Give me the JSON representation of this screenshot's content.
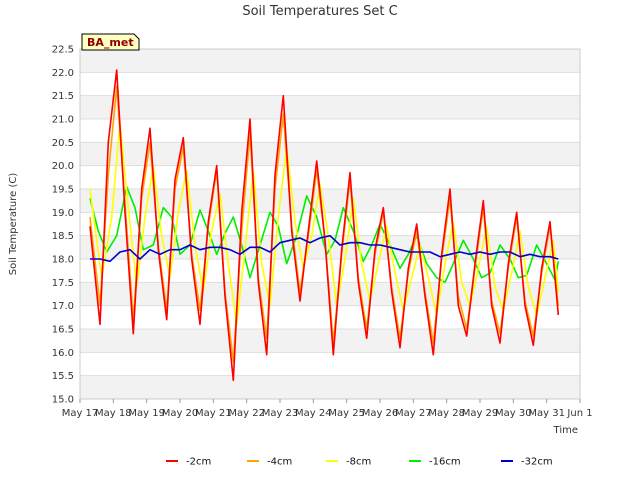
{
  "chart_data": {
    "type": "line",
    "title": "Soil Temperatures Set C",
    "xlabel": "Time",
    "ylabel": "Soil Temperature (C)",
    "site_label": "BA_met",
    "xlim": [
      17,
      32
    ],
    "ylim": [
      15.0,
      22.5
    ],
    "x_ticks": [
      {
        "x": 17,
        "label": "May 17"
      },
      {
        "x": 18,
        "label": "May 18"
      },
      {
        "x": 19,
        "label": "May 19"
      },
      {
        "x": 20,
        "label": "May 20"
      },
      {
        "x": 21,
        "label": "May 21"
      },
      {
        "x": 22,
        "label": "May 22"
      },
      {
        "x": 23,
        "label": "May 23"
      },
      {
        "x": 24,
        "label": "May 24"
      },
      {
        "x": 25,
        "label": "May 25"
      },
      {
        "x": 26,
        "label": "May 26"
      },
      {
        "x": 27,
        "label": "May 27"
      },
      {
        "x": 28,
        "label": "May 28"
      },
      {
        "x": 29,
        "label": "May 29"
      },
      {
        "x": 30,
        "label": "May 30"
      },
      {
        "x": 31,
        "label": "May 31"
      },
      {
        "x": 32,
        "label": "Jun 1"
      }
    ],
    "y_ticks": [
      "15.0",
      "15.5",
      "16.0",
      "16.5",
      "17.0",
      "17.5",
      "18.0",
      "18.5",
      "19.0",
      "19.5",
      "20.0",
      "20.5",
      "21.0",
      "21.5",
      "22.0",
      "22.5"
    ],
    "grid": true,
    "legend_position": "bottom",
    "series": [
      {
        "name": "-2cm",
        "color": "#ff0000",
        "x": [
          17.3,
          17.6,
          17.85,
          18.1,
          18.35,
          18.6,
          18.85,
          19.1,
          19.35,
          19.6,
          19.85,
          20.1,
          20.35,
          20.6,
          20.85,
          21.1,
          21.35,
          21.6,
          21.85,
          22.1,
          22.35,
          22.6,
          22.85,
          23.1,
          23.35,
          23.6,
          23.85,
          24.1,
          24.35,
          24.6,
          24.85,
          25.1,
          25.35,
          25.6,
          25.85,
          26.1,
          26.35,
          26.6,
          26.85,
          27.1,
          27.35,
          27.6,
          27.85,
          28.1,
          28.35,
          28.6,
          28.85,
          29.1,
          29.35,
          29.6,
          29.85,
          30.1,
          30.35,
          30.6,
          30.85,
          31.1,
          31.35
        ],
        "y": [
          18.7,
          16.6,
          20.5,
          22.05,
          19.0,
          16.4,
          19.5,
          20.8,
          18.2,
          16.7,
          19.7,
          20.6,
          18.0,
          16.6,
          18.8,
          20.0,
          17.2,
          15.4,
          19.0,
          21.0,
          17.5,
          15.95,
          19.8,
          21.5,
          18.6,
          17.1,
          18.6,
          20.1,
          18.4,
          15.95,
          18.2,
          19.85,
          17.5,
          16.3,
          18.2,
          19.1,
          17.3,
          16.1,
          17.8,
          18.75,
          17.2,
          15.95,
          18.1,
          19.5,
          17.0,
          16.35,
          17.9,
          19.25,
          17.0,
          16.2,
          17.9,
          19.0,
          17.0,
          16.15,
          17.8,
          18.8,
          16.8
        ]
      },
      {
        "name": "-4cm",
        "color": "#ffa500",
        "x": [
          17.3,
          17.6,
          17.85,
          18.1,
          18.35,
          18.6,
          18.85,
          19.1,
          19.35,
          19.6,
          19.85,
          20.1,
          20.35,
          20.6,
          20.85,
          21.1,
          21.35,
          21.6,
          21.85,
          22.1,
          22.35,
          22.6,
          22.85,
          23.1,
          23.35,
          23.6,
          23.85,
          24.1,
          24.35,
          24.6,
          24.85,
          25.1,
          25.35,
          25.6,
          25.85,
          26.1,
          26.35,
          26.6,
          26.85,
          27.1,
          27.35,
          27.6,
          27.85,
          28.1,
          28.35,
          28.6,
          28.85,
          29.1,
          29.35,
          29.6,
          29.85,
          30.1,
          30.35,
          30.6,
          30.85,
          31.1,
          31.35
        ],
        "y": [
          18.9,
          17.0,
          19.8,
          21.7,
          19.2,
          16.7,
          19.3,
          20.5,
          18.3,
          16.9,
          19.5,
          20.4,
          18.1,
          16.9,
          18.7,
          19.9,
          17.3,
          15.8,
          18.6,
          20.7,
          17.6,
          16.3,
          19.5,
          21.1,
          18.7,
          17.3,
          18.5,
          19.9,
          18.4,
          16.2,
          18.1,
          19.7,
          17.6,
          16.5,
          18.1,
          19.0,
          17.4,
          16.3,
          17.7,
          18.6,
          17.3,
          16.2,
          18.0,
          19.3,
          17.2,
          16.5,
          17.8,
          19.1,
          17.1,
          16.4,
          17.8,
          18.9,
          17.1,
          16.35,
          17.7,
          18.7,
          17.0
        ]
      },
      {
        "name": "-8cm",
        "color": "#ffff00",
        "x": [
          17.3,
          17.65,
          17.95,
          18.2,
          18.45,
          18.7,
          18.95,
          19.2,
          19.45,
          19.7,
          19.95,
          20.2,
          20.45,
          20.7,
          20.95,
          21.2,
          21.45,
          21.7,
          21.95,
          22.2,
          22.45,
          22.7,
          22.95,
          23.2,
          23.45,
          23.7,
          23.95,
          24.2,
          24.45,
          24.7,
          24.95,
          25.2,
          25.45,
          25.7,
          25.95,
          26.2,
          26.45,
          26.7,
          26.95,
          27.2,
          27.45,
          27.7,
          27.95,
          28.2,
          28.45,
          28.7,
          28.95,
          29.2,
          29.45,
          29.7,
          29.95,
          30.2,
          30.45,
          30.7,
          30.95,
          31.2,
          31.35
        ],
        "y": [
          19.5,
          17.6,
          18.9,
          20.9,
          19.1,
          17.4,
          18.9,
          20.0,
          18.5,
          17.6,
          19.0,
          19.9,
          18.3,
          17.3,
          18.6,
          19.4,
          17.9,
          16.6,
          18.2,
          19.9,
          17.9,
          17.0,
          18.9,
          20.4,
          18.8,
          17.8,
          18.5,
          19.6,
          18.5,
          17.0,
          18.0,
          19.3,
          17.9,
          17.1,
          17.9,
          18.7,
          17.7,
          16.9,
          17.6,
          18.3,
          17.6,
          16.8,
          17.9,
          18.8,
          17.5,
          17.0,
          17.8,
          18.7,
          17.4,
          16.9,
          17.7,
          18.6,
          17.4,
          16.8,
          17.6,
          18.4,
          17.3
        ]
      },
      {
        "name": "-16cm",
        "color": "#00ee00",
        "x": [
          17.3,
          17.55,
          17.8,
          18.1,
          18.4,
          18.65,
          18.9,
          19.2,
          19.5,
          19.75,
          20.0,
          20.3,
          20.6,
          20.85,
          21.1,
          21.35,
          21.6,
          21.85,
          22.1,
          22.4,
          22.7,
          22.95,
          23.2,
          23.5,
          23.8,
          24.1,
          24.4,
          24.65,
          24.9,
          25.2,
          25.5,
          25.75,
          26.0,
          26.3,
          26.6,
          26.85,
          27.1,
          27.4,
          27.7,
          27.95,
          28.2,
          28.5,
          28.8,
          29.05,
          29.3,
          29.6,
          29.9,
          30.15,
          30.4,
          30.7,
          31.0,
          31.25,
          31.35
        ],
        "y": [
          19.3,
          18.6,
          18.15,
          18.5,
          19.55,
          19.1,
          18.2,
          18.3,
          19.1,
          18.9,
          18.1,
          18.3,
          19.05,
          18.6,
          18.1,
          18.55,
          18.9,
          18.3,
          17.6,
          18.3,
          19.0,
          18.7,
          17.9,
          18.5,
          19.35,
          18.9,
          18.1,
          18.4,
          19.1,
          18.6,
          17.95,
          18.3,
          18.75,
          18.3,
          17.8,
          18.1,
          18.5,
          17.9,
          17.6,
          17.5,
          17.9,
          18.4,
          18.0,
          17.6,
          17.7,
          18.3,
          18.0,
          17.6,
          17.65,
          18.3,
          17.9,
          17.55,
          17.95
        ]
      },
      {
        "name": "-32cm",
        "color": "#0000cc",
        "x": [
          17.3,
          17.6,
          17.9,
          18.2,
          18.5,
          18.8,
          19.1,
          19.4,
          19.7,
          20.0,
          20.3,
          20.6,
          20.9,
          21.2,
          21.5,
          21.8,
          22.1,
          22.4,
          22.7,
          23.0,
          23.3,
          23.6,
          23.9,
          24.2,
          24.5,
          24.8,
          25.1,
          25.4,
          25.7,
          26.0,
          26.3,
          26.6,
          26.9,
          27.2,
          27.5,
          27.8,
          28.1,
          28.4,
          28.7,
          29.0,
          29.3,
          29.6,
          29.9,
          30.2,
          30.5,
          30.8,
          31.1,
          31.35
        ],
        "y": [
          18.0,
          18.0,
          17.95,
          18.15,
          18.2,
          18.0,
          18.2,
          18.1,
          18.2,
          18.2,
          18.3,
          18.2,
          18.25,
          18.25,
          18.2,
          18.1,
          18.25,
          18.25,
          18.15,
          18.35,
          18.4,
          18.45,
          18.35,
          18.45,
          18.5,
          18.3,
          18.35,
          18.35,
          18.3,
          18.3,
          18.25,
          18.2,
          18.15,
          18.15,
          18.15,
          18.05,
          18.1,
          18.15,
          18.1,
          18.15,
          18.1,
          18.15,
          18.15,
          18.05,
          18.1,
          18.05,
          18.05,
          18.0
        ]
      }
    ]
  }
}
